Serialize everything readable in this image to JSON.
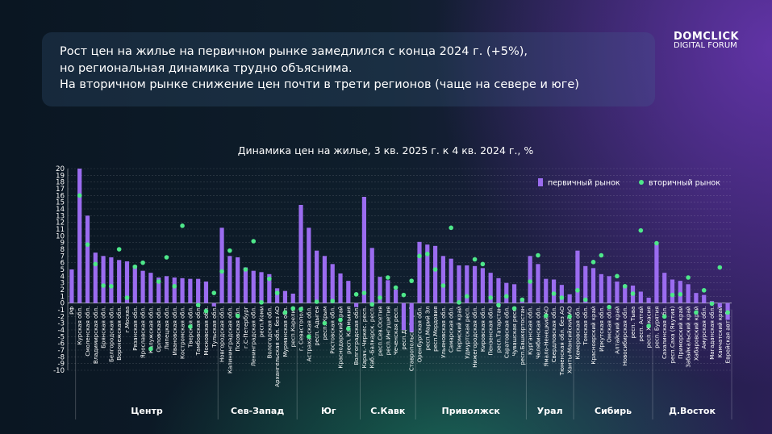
{
  "header": {
    "lines": [
      "Рост цен на жилье на первичном рынке замедлился с конца 2024 г. (+5%),",
      "но региональная динамика трудно объяснима.",
      "На вторичном рынке снижение цен почти в трети регионов (чаще на севере и юге)"
    ]
  },
  "logo": {
    "brand": "DOMCLICK",
    "event": "DIGITAL FORUM"
  },
  "chart_data": {
    "type": "bar",
    "title": "Динамика цен на жилье, 3 кв. 2025 г. к 4 кв. 2024 г., %",
    "categories": [
      "РФ",
      "Курская обл.",
      "Смоленская обл.",
      "Владимирская обл.",
      "Брянская обл.",
      "Белгородская обл.",
      "Воронежская обл.",
      "г.Москва",
      "Рязанская обл.",
      "Ярославская обл.",
      "Калужская обл.",
      "Орловская обл.",
      "Липецкая обл.",
      "Ивановская обл.",
      "Костромская обл.",
      "Тверская обл.",
      "Тамбовская обл.",
      "Московская обл.",
      "Тульская обл.",
      "Новгородская обл.",
      "Калининградская обл.",
      "Псковская обл.",
      "г.С-Петербург",
      "Ленинградская обл.",
      "респ.Коми",
      "Вологодская обл.",
      "Архангельская обл. без АО",
      "Мурманская обл.",
      "респ.Карелия",
      "г. Севастополь",
      "Астраханская обл.",
      "респ. Адыгея",
      "респ. Крым",
      "Ростовская обл.",
      "Краснодарский край",
      "респ. Калмыкия",
      "Волгоградская обл.",
      "Карач.-Черкес. респ.",
      "Каб.-Балкарск. респ.",
      "респ.Сев.Осетия",
      "респ.Ингушетия",
      "Чеченская респ.",
      "респ.Дагестан",
      "Ставропольский край",
      "Оренбургская обл.",
      "респ.Марий Эл",
      "респ.Мордовия",
      "Ульяновская обл.",
      "Самарская обл.",
      "Пермский край",
      "Удмуртская респ.",
      "Нижегородская обл.",
      "Кировская обл.",
      "Пензенская обл.",
      "респ.Татарстан",
      "Саратовская обл.",
      "Чувашская респ.",
      "респ.Башкортостан",
      "Курганская обл.",
      "Челябинская обл.",
      "Ямало-Ненецкий АО",
      "Свердловская обл.",
      "Тюменская обл. без АО",
      "Ханты-Мансийский АО",
      "Кемеровская обл.",
      "Томская обл.",
      "Красноярский край",
      "Иркутская обл.",
      "Омская обл.",
      "Алтайский край",
      "Новосибирская обл.",
      "респ. Тыва",
      "респ. Алтай",
      "респ. Хакасия",
      "респ. Бурятия",
      "Сахалинская обл.",
      "респ.Саха (Якутия)",
      "Приморский край",
      "Забайкальский край",
      "Хабаровский край",
      "Амурская обл.",
      "Магаданская обл.",
      "Камчатский край",
      "Еврейская авт.обл."
    ],
    "groups": [
      {
        "name": "Центр",
        "from": "Курская обл.",
        "to": "Тульская обл."
      },
      {
        "name": "Сев-Запад",
        "from": "Новгородская обл.",
        "to": "респ.Карелия"
      },
      {
        "name": "Юг",
        "from": "г. Севастополь",
        "to": "Волгоградская обл."
      },
      {
        "name": "С.Кавк",
        "from": "Карач.-Черкес. респ.",
        "to": "Ставропольский край"
      },
      {
        "name": "Приволжск",
        "from": "Оренбургская обл.",
        "to": "респ.Башкортостан"
      },
      {
        "name": "Урал",
        "from": "Курганская обл.",
        "to": "Ханты-Мансийский АО"
      },
      {
        "name": "Сибирь",
        "from": "Кемеровская обл.",
        "to": "респ. Хакасия"
      },
      {
        "name": "Д.Восток",
        "from": "респ. Бурятия",
        "to": "Еврейская авт.обл."
      }
    ],
    "series": [
      {
        "name": "первичный рынок",
        "color": "#9b6cf0",
        "values": [
          5,
          20,
          13,
          7.5,
          7,
          6.8,
          6.4,
          6.2,
          5.6,
          4.8,
          4.5,
          3.8,
          4,
          3.8,
          3.7,
          3.6,
          3.6,
          3.2,
          -0.5,
          11.2,
          7,
          6.8,
          5.3,
          4.8,
          4.6,
          4.3,
          2.2,
          1.8,
          1.4,
          14.6,
          11.2,
          7.8,
          7,
          5.8,
          4.4,
          3.3,
          -0.6,
          15.8,
          8.2,
          3.9,
          3.4,
          2,
          -4,
          -4.3,
          9.1,
          8.7,
          8.5,
          7,
          6.6,
          5.6,
          5.6,
          5.5,
          5.2,
          4.5,
          3.7,
          3,
          2.8,
          0.7,
          7,
          5.8,
          3.6,
          3.5,
          2.7,
          1.3,
          7.8,
          5.5,
          5.2,
          4.3,
          4,
          3.2,
          2.7,
          2.6,
          1.7,
          0.8,
          8.7,
          4.5,
          3.5,
          3.3,
          2.8,
          1.5,
          1.2,
          0.3,
          -0.6,
          -2.5
        ]
      },
      {
        "name": "вторичный рынок",
        "color": "#4ee88a",
        "values": [
          null,
          16,
          8.7,
          5.8,
          2.6,
          2.5,
          8,
          0.8,
          5.4,
          6,
          -6.8,
          3.2,
          6.8,
          2.5,
          11.5,
          -3.5,
          -0.3,
          -1.2,
          1.5,
          4.7,
          7.8,
          -1.9,
          5,
          9.2,
          0.1,
          3.6,
          1.5,
          -1.4,
          -0.8,
          -0.9,
          -5,
          0.2,
          -3,
          0.3,
          -2.5,
          -3.8,
          1.3,
          1.5,
          -0.2,
          0.8,
          3.8,
          2.3,
          1.2,
          3.3,
          7,
          7.3,
          5,
          2.6,
          11.2,
          0.1,
          1,
          6.5,
          5.8,
          0.8,
          -0.3,
          1,
          -0.8,
          0.5,
          3.2,
          7.1,
          -1.9,
          1.4,
          0.8,
          -2,
          1.9,
          0.5,
          6.1,
          7.1,
          -0.6,
          4,
          2.5,
          1.4,
          10.8,
          -3.4,
          8.9,
          -2,
          1.2,
          1.3,
          3.8,
          -1.4,
          1.9,
          -0.1,
          5.3,
          -1.4
        ]
      }
    ],
    "ylim": [
      -10,
      20
    ],
    "yticks": [
      -10,
      -9,
      -8,
      -7,
      -6,
      -5,
      -4,
      -3,
      -2,
      -1,
      0,
      1,
      2,
      3,
      4,
      5,
      6,
      7,
      8,
      9,
      10,
      11,
      12,
      13,
      14,
      15,
      16,
      17,
      18,
      19,
      20
    ],
    "grid": true,
    "legend": "upper right"
  }
}
